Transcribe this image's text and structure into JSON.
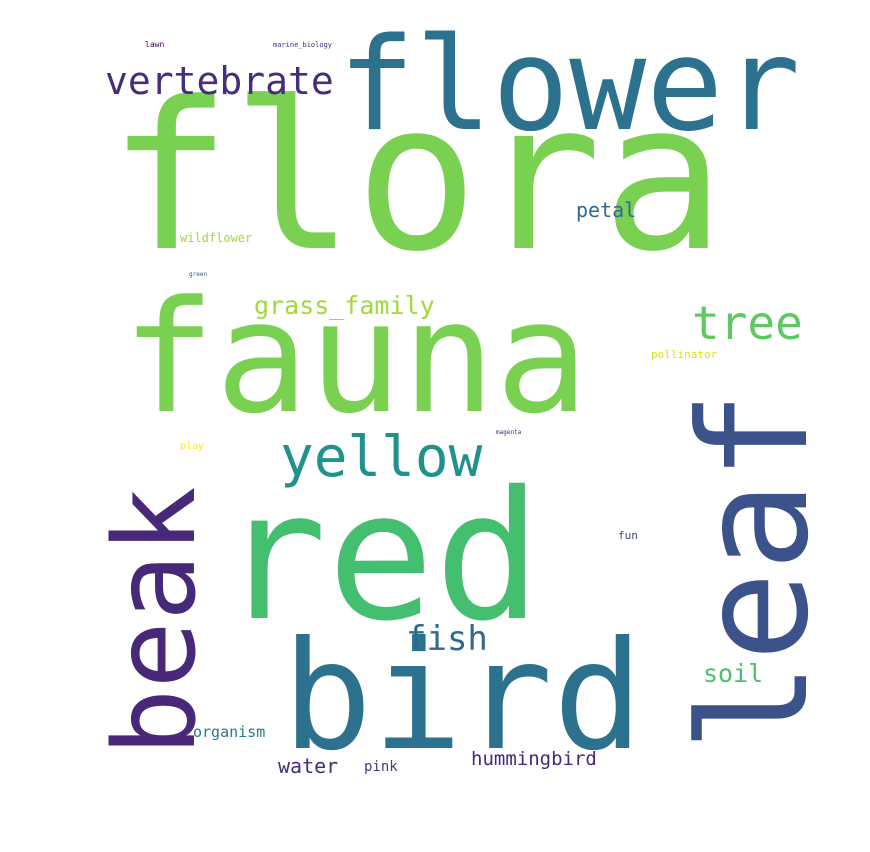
{
  "wordcloud": {
    "words": [
      {
        "text": "flora",
        "color": "#7ad151"
      },
      {
        "text": "fauna",
        "color": "#7ad151"
      },
      {
        "text": "red",
        "color": "#44bf70"
      },
      {
        "text": "bird",
        "color": "#2c728e"
      },
      {
        "text": "leaf",
        "color": "#3b528b"
      },
      {
        "text": "beak",
        "color": "#482878"
      },
      {
        "text": "flower",
        "color": "#2c728e"
      },
      {
        "text": "yellow",
        "color": "#21918c"
      },
      {
        "text": "vertebrate",
        "color": "#472d7b"
      },
      {
        "text": "tree",
        "color": "#5ec962"
      },
      {
        "text": "grass_family",
        "color": "#a0da39"
      },
      {
        "text": "fish",
        "color": "#31688e"
      },
      {
        "text": "soil",
        "color": "#4ac16d"
      },
      {
        "text": "petal",
        "color": "#31688e"
      },
      {
        "text": "hummingbird",
        "color": "#482878"
      },
      {
        "text": "water",
        "color": "#472d7b"
      },
      {
        "text": "organism",
        "color": "#2a788e"
      },
      {
        "text": "wildflower",
        "color": "#a0da39"
      },
      {
        "text": "pink",
        "color": "#443983"
      },
      {
        "text": "pollinator",
        "color": "#d8e219"
      },
      {
        "text": "play",
        "color": "#fde725"
      },
      {
        "text": "fun",
        "color": "#3e4989"
      },
      {
        "text": "lawn",
        "color": "#440154"
      },
      {
        "text": "marine_biology",
        "color": "#472d7b"
      },
      {
        "text": "green",
        "color": "#3b528b"
      },
      {
        "text": "magenta",
        "color": "#482878"
      }
    ]
  }
}
